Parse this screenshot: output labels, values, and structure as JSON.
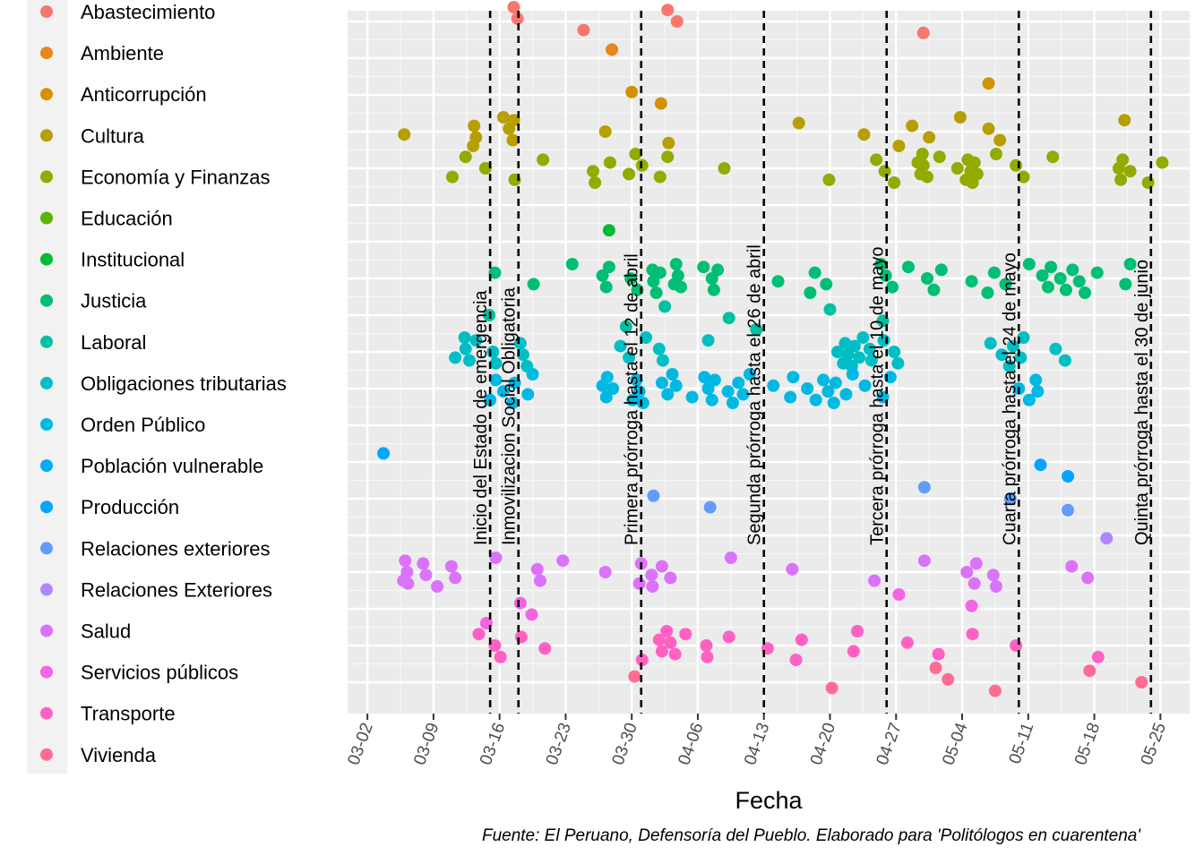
{
  "chart_data": {
    "type": "scatter",
    "xlabel": "Fecha",
    "caption": "Fuente: El Peruano, Defensoría del Pueblo. Elaborado para 'Politólogos en cuarentena'",
    "x_ticks": [
      "03-02",
      "03-09",
      "03-16",
      "03-23",
      "03-30",
      "04-06",
      "04-13",
      "04-20",
      "04-27",
      "05-04",
      "05-11",
      "05-18",
      "05-25"
    ],
    "x_tick_days": [
      0,
      7,
      14,
      21,
      28,
      35,
      42,
      49,
      56,
      63,
      70,
      77,
      84
    ],
    "xlim_days": [
      -2.1,
      87.1
    ],
    "grid": true,
    "legend_position": "left",
    "categories": [
      {
        "name": "Abastecimiento",
        "color": "#F8766D"
      },
      {
        "name": "Ambiente",
        "color": "#E7861B"
      },
      {
        "name": "Anticorrupción",
        "color": "#D39200"
      },
      {
        "name": "Cultura",
        "color": "#B79F00"
      },
      {
        "name": "Economía y Finanzas",
        "color": "#93AA00"
      },
      {
        "name": "Educación",
        "color": "#5EB300"
      },
      {
        "name": "Institucional",
        "color": "#00BA38"
      },
      {
        "name": "Justicia",
        "color": "#00BF74"
      },
      {
        "name": "Laboral",
        "color": "#00C19F"
      },
      {
        "name": "Obligaciones tributarias",
        "color": "#00BFC4"
      },
      {
        "name": "Orden Público",
        "color": "#00B9E3"
      },
      {
        "name": "Población vulnerable",
        "color": "#00ADFA"
      },
      {
        "name": "Producción",
        "color": "#00A5FF"
      },
      {
        "name": "Relaciones exteriores",
        "color": "#619CFF"
      },
      {
        "name": "Relaciones Exteriores",
        "color": "#AE87FF"
      },
      {
        "name": "Salud",
        "color": "#DB72FB"
      },
      {
        "name": "Servicios públicos",
        "color": "#F564E3"
      },
      {
        "name": "Transporte",
        "color": "#FF61C3"
      },
      {
        "name": "Vivienda",
        "color": "#FF6C91"
      }
    ],
    "events": [
      {
        "day": 13,
        "label": "Inicio del Estado de emergencia"
      },
      {
        "day": 16,
        "label": "Inmovilizacion Social Obligatoria"
      },
      {
        "day": 29,
        "label": "Primera prórroga hasta el 12 de abril"
      },
      {
        "day": 42,
        "label": "Segunda prórroga hasta el 26 de abril"
      },
      {
        "day": 55,
        "label": "Tercera prórroga hasta el 10 de mayo"
      },
      {
        "day": 69,
        "label": "Cuarta prórroga hasta el 24 de mayo"
      },
      {
        "day": 83,
        "label": "Quinta prórroga hasta el 30 de junio"
      }
    ],
    "points": [
      {
        "category": "Abastecimiento",
        "days": [
          15.5,
          15.9,
          22.9,
          31.8,
          32.8,
          58.9
        ]
      },
      {
        "category": "Ambiente",
        "days": [
          25.9
        ]
      },
      {
        "category": "Anticorrupción",
        "days": [
          28.0,
          31.1,
          65.8
        ]
      },
      {
        "category": "Cultura",
        "days": [
          3.9,
          11.2,
          11.3,
          11.5,
          14.4,
          15.0,
          15.4,
          15.5,
          25.2,
          31.9,
          45.7,
          52.6,
          56.3,
          57.7,
          59.5,
          62.8,
          65.8,
          67.0,
          80.2
        ]
      },
      {
        "category": "Economía y Finanzas",
        "days": [
          9.0,
          10.4,
          12.5,
          15.6,
          18.6,
          23.9,
          24.1,
          25.7,
          27.7,
          28.4,
          29.1,
          31.0,
          31.8,
          37.8,
          48.9,
          53.9,
          54.8,
          55.8,
          58.3,
          58.6,
          58.8,
          58.9,
          59.3,
          60.6,
          62.5,
          63.4,
          63.6,
          63.9,
          64.1,
          64.3,
          64.6,
          66.6,
          68.7,
          69.5,
          72.6,
          79.6,
          79.8,
          80.0,
          80.8,
          82.7,
          84.2
        ]
      },
      {
        "category": "Institucional",
        "days": [
          25.6
        ]
      },
      {
        "category": "Justicia",
        "days": [
          13.5,
          17.6,
          21.7,
          24.9,
          25.3,
          25.6,
          27.9,
          28.6,
          30.2,
          30.3,
          30.6,
          31.0,
          32.5,
          32.7,
          32.9,
          33.2,
          35.6,
          36.5,
          36.7,
          37.1,
          43.5,
          46.9,
          47.4,
          48.6,
          54.4,
          54.9,
          55.6,
          57.3,
          59.3,
          60.0,
          60.8,
          64.0,
          65.7,
          66.4,
          67.6,
          70.1,
          71.5,
          72.1,
          72.4,
          73.4,
          74.0,
          74.7,
          75.4,
          76.0,
          77.3,
          80.3,
          80.8
        ]
      },
      {
        "category": "Laboral",
        "days": [
          12.9,
          27.4,
          31.5,
          38.3,
          41.2,
          49.0,
          54.6
        ]
      },
      {
        "category": "Obligaciones tributarias",
        "days": [
          9.3,
          10.3,
          10.4,
          10.8,
          11.5,
          13.3,
          13.6,
          16.2,
          16.5,
          16.9,
          26.8,
          27.7,
          29.5,
          30.9,
          31.3,
          36.1,
          49.8,
          50.4,
          50.6,
          50.9,
          51.3,
          51.6,
          52.1,
          52.5,
          53.2,
          53.4,
          54.7,
          55.8,
          56.2,
          66.0,
          67.2,
          68.0,
          68.4,
          69.2,
          69.5,
          72.9,
          73.9
        ]
      },
      {
        "category": "Orden Público",
        "days": [
          13.0,
          13.6,
          14.4,
          15.4,
          15.6,
          17.0,
          17.5,
          24.9,
          25.3,
          25.4,
          26.0,
          28.1,
          28.5,
          28.8,
          29.2,
          31.2,
          31.8,
          32.3,
          32.7,
          34.4,
          35.7,
          36.1,
          36.5,
          36.8,
          38.2,
          38.7,
          39.3,
          39.8,
          40.5,
          43.0,
          44.8,
          45.1,
          46.6,
          47.5,
          48.3,
          48.8,
          49.4,
          49.6,
          50.7,
          51.4,
          52.7,
          54.6,
          55.4,
          69.0,
          70.1,
          70.8,
          71.0
        ]
      },
      {
        "category": "Producción",
        "days": [
          1.7,
          71.3,
          74.2
        ]
      },
      {
        "category": "Relaciones exteriores",
        "days": [
          30.3,
          36.3,
          59.0,
          68.1,
          74.2
        ]
      },
      {
        "category": "Relaciones Exteriores",
        "days": [
          78.3
        ]
      },
      {
        "category": "Salud",
        "days": [
          3.8,
          4.0,
          4.2,
          4.3,
          5.9,
          6.2,
          7.4,
          8.9,
          9.3,
          13.6,
          18.0,
          18.3,
          20.7,
          25.2,
          28.8,
          29.0,
          30.1,
          30.2,
          31.2,
          32.1,
          38.5,
          45.0,
          53.7,
          59.0,
          63.5,
          64.3,
          64.5,
          66.3,
          66.6,
          74.6,
          76.3
        ]
      },
      {
        "category": "Servicios públicos",
        "days": [
          12.6,
          16.2,
          17.4,
          56.3,
          64.0
        ]
      },
      {
        "category": "Transporte",
        "days": [
          11.8,
          13.5,
          14.1,
          16.3,
          18.8,
          29.1,
          30.9,
          31.2,
          31.7,
          32.1,
          32.6,
          33.7,
          35.9,
          36.0,
          38.3,
          42.4,
          45.4,
          46.0,
          51.5,
          51.9,
          57.2,
          60.5,
          64.1,
          68.7,
          77.4
        ]
      },
      {
        "category": "Vivienda",
        "days": [
          28.3,
          49.2,
          60.2,
          61.5,
          66.5,
          76.5,
          82.0
        ]
      }
    ]
  }
}
